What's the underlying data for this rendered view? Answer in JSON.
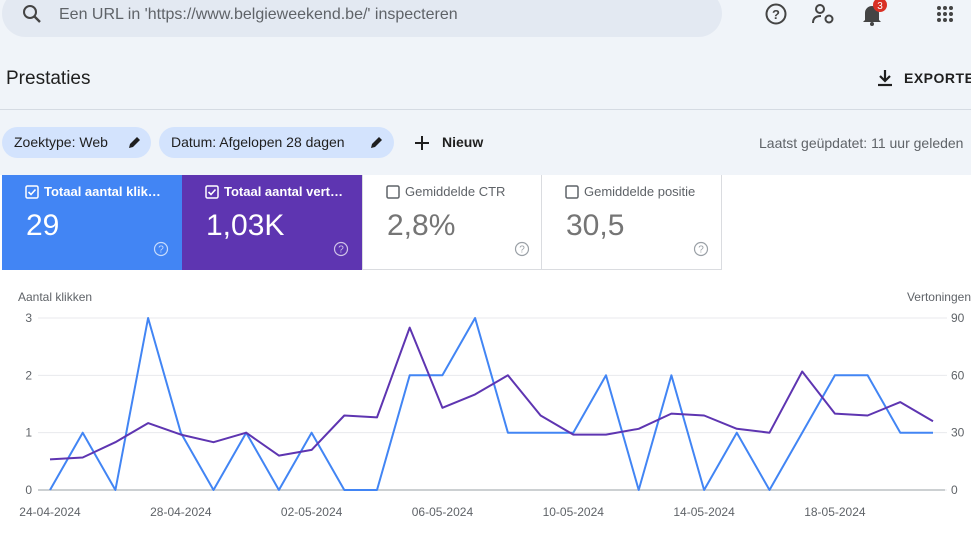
{
  "ui": {
    "search_placeholder": "Een URL in 'https://www.belgieweekend.be/' inspecteren",
    "notification_count": "3",
    "page_title": "Prestaties",
    "export": "EXPORTEREN",
    "filters": [
      "Zoektype: Web",
      "Datum: Afgelopen 28 dagen"
    ],
    "new_filter": "Nieuw",
    "last_updated": "Laatst geüpdatet: 11 uur geleden",
    "cards": [
      {
        "label": "Totaal aantal klikken",
        "value": "29"
      },
      {
        "label": "Totaal aantal vertoningen",
        "value": "1,03K"
      },
      {
        "label": "Gemiddelde CTR",
        "value": "2,8%"
      },
      {
        "label": "Gemiddelde positie",
        "value": "30,5"
      }
    ]
  },
  "chart_data": {
    "type": "line",
    "y_label": "Aantal klikken",
    "y2_label": "Vertoningen",
    "categories": [
      "24-04-2024",
      null,
      null,
      null,
      "28-04-2024",
      null,
      null,
      null,
      "02-05-2024",
      null,
      null,
      null,
      "06-05-2024",
      null,
      null,
      null,
      "10-05-2024",
      null,
      null,
      null,
      "14-05-2024",
      null,
      null,
      null,
      "18-05-2024",
      null,
      null,
      null
    ],
    "series": [
      {
        "color": "#4285f4",
        "axis": "y",
        "values": [
          0,
          1,
          0,
          3,
          1,
          0,
          1,
          0,
          1,
          0,
          0,
          2,
          2,
          3,
          1,
          1,
          1,
          2,
          0,
          2,
          0,
          1,
          0,
          1,
          2,
          2,
          1,
          1
        ]
      },
      {
        "color": "#5e35b1",
        "axis": "y2",
        "values": [
          16,
          17,
          25,
          35,
          29,
          25,
          30,
          18,
          21,
          39,
          38,
          85,
          43,
          50,
          60,
          39,
          29,
          29,
          32,
          40,
          39,
          32,
          30,
          62,
          40,
          39,
          46,
          36
        ]
      }
    ],
    "ylim": [
      0,
      3
    ],
    "yticks": [
      0,
      1,
      2,
      3
    ],
    "y2lim": [
      0,
      90
    ],
    "y2ticks": [
      0,
      30,
      60,
      90
    ],
    "grid": true
  }
}
